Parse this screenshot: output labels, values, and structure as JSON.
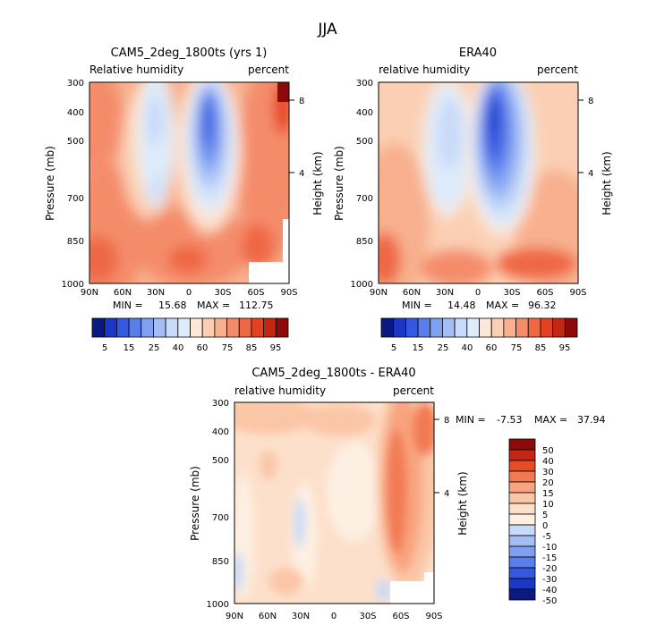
{
  "figure": {
    "title": "JJA"
  },
  "chart_data": [
    {
      "type": "heatmap",
      "id": "p1",
      "title": "CAM5_2deg_1800ts (yrs 1)",
      "left_label": "Relative humidity",
      "right_label": "percent",
      "xlabel": "",
      "ylabel": "Pressure (mb)",
      "ylabel_right": "Height (km)",
      "x_ticks": [
        "90N",
        "60N",
        "30N",
        "0",
        "30S",
        "60S",
        "90S"
      ],
      "y_ticks": [
        "300",
        "400",
        "500",
        "700",
        "850",
        "1000"
      ],
      "y_ticks_right": [
        "8",
        "4"
      ],
      "stats": {
        "min_label": "MIN =",
        "min": "15.68",
        "max_label": "MAX =",
        "max": "112.75"
      },
      "colorbar": {
        "levels": [
          "5",
          "15",
          "25",
          "40",
          "60",
          "75",
          "85",
          "95"
        ]
      },
      "contour_levels": [
        5,
        10,
        15,
        20,
        25,
        30,
        40,
        50,
        60,
        65,
        70,
        75,
        80,
        85,
        90,
        95
      ]
    },
    {
      "type": "heatmap",
      "id": "p2",
      "title": "ERA40",
      "left_label": "relative humidity",
      "right_label": "percent",
      "xlabel": "",
      "ylabel": "Pressure (mb)",
      "ylabel_right": "Height (km)",
      "x_ticks": [
        "90N",
        "60N",
        "30N",
        "0",
        "30S",
        "60S",
        "90S"
      ],
      "y_ticks": [
        "300",
        "400",
        "500",
        "700",
        "850",
        "1000"
      ],
      "y_ticks_right": [
        "8",
        "4"
      ],
      "stats": {
        "min_label": "MIN =",
        "min": "14.48",
        "max_label": "MAX =",
        "max": "96.32"
      },
      "colorbar": {
        "levels": [
          "5",
          "15",
          "25",
          "40",
          "60",
          "75",
          "85",
          "95"
        ]
      },
      "contour_levels": [
        5,
        10,
        15,
        20,
        25,
        30,
        40,
        50,
        60,
        65,
        70,
        75,
        80,
        85,
        90,
        95
      ]
    },
    {
      "type": "heatmap",
      "id": "p3",
      "title": "CAM5_2deg_1800ts - ERA40",
      "left_label": "relative humidity",
      "right_label": "percent",
      "xlabel": "",
      "ylabel": "Pressure (mb)",
      "ylabel_right": "Height (km)",
      "x_ticks": [
        "90N",
        "60N",
        "30N",
        "0",
        "30S",
        "60S",
        "90S"
      ],
      "y_ticks": [
        "300",
        "400",
        "500",
        "700",
        "850",
        "1000"
      ],
      "y_ticks_right": [
        "8",
        "4"
      ],
      "stats": {
        "min_label": "MIN =",
        "min": "-7.53",
        "max_label": "MAX =",
        "max": "37.94"
      },
      "colorbar": {
        "levels": [
          "50",
          "40",
          "30",
          "20",
          "15",
          "10",
          "5",
          "0",
          "-5",
          "-10",
          "-15",
          "-20",
          "-30",
          "-40",
          "-50"
        ]
      }
    }
  ],
  "colors": {
    "seq": [
      "#0a1a80",
      "#1c37c6",
      "#3458e0",
      "#5a7dec",
      "#7f9ff1",
      "#a4bdf5",
      "#c8daf9",
      "#deebfb",
      "#fde7d6",
      "#fbcfb3",
      "#f8b08f",
      "#f48c6a",
      "#ef6845",
      "#e5401f",
      "#c42613",
      "#8c0a08"
    ],
    "diff": [
      "#0a1a80",
      "#1c37c6",
      "#3458e0",
      "#5a7dec",
      "#7f9ff1",
      "#a4bdf5",
      "#c8daf9",
      "#fdf0e3",
      "#fde0cb",
      "#fbc6a6",
      "#f8a47f",
      "#f27a52",
      "#e84c26",
      "#c42613",
      "#8c0a08"
    ]
  }
}
